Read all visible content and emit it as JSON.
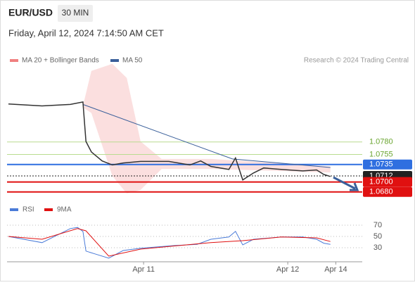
{
  "header": {
    "symbol": "EUR/USD",
    "interval": "30 MIN",
    "timestamp": "Friday, April 12, 2024 7:14:50 AM CET",
    "credit": "Research © 2024 Trading Central"
  },
  "chart_data": [
    {
      "type": "line",
      "x": [
        1.5,
        7.1,
        11.8,
        13.9,
        14.4,
        15.3,
        17.1,
        18.8,
        20.6,
        23.5,
        28.2,
        31.7,
        33.5,
        35.2,
        38.2,
        39.3,
        40.5,
        42.3,
        44.0,
        46.9,
        50.5,
        52.8,
        54.0,
        55.1
      ],
      "values": [
        1.0856,
        1.0852,
        1.0855,
        1.086,
        1.0781,
        1.076,
        1.0742,
        1.0734,
        1.0738,
        1.0741,
        1.0741,
        1.0734,
        1.0742,
        1.0731,
        1.0725,
        1.0748,
        1.0704,
        1.0718,
        1.0728,
        1.0725,
        1.0722,
        1.0724,
        1.0715,
        1.0711
      ],
      "color": "#333333",
      "series": [
        {
          "name": "MA 20 + Bollinger Bands",
          "color": "#f08080",
          "x": [
            13.9,
            15.3,
            18.8,
            21.2,
            23.5,
            27.0,
            35.2,
            55.1
          ],
          "upper": [
            1.0852,
            1.0922,
            1.0936,
            1.0908,
            1.0781,
            1.0746,
            1.0746,
            1.0731
          ],
          "lower": [
            1.0849,
            1.0838,
            1.0712,
            1.0677,
            1.0684,
            1.0726,
            1.0726,
            1.0719
          ]
        },
        {
          "name": "MA 50",
          "color": "#3a5f9a",
          "x": [
            13.9,
            38.8,
            55.1
          ],
          "values": [
            1.0855,
            1.0746,
            1.0729
          ]
        }
      ],
      "levels": [
        {
          "value": 1.078,
          "label": "1.0780",
          "color": "#6aa530"
        },
        {
          "value": 1.0755,
          "label": "1.0755",
          "color": "#6aa530"
        },
        {
          "value": 1.0735,
          "label": "1.0735",
          "color": "#2f6fe0"
        },
        {
          "value": 1.0712,
          "label": "1.0712",
          "color": "#222222"
        },
        {
          "value": 1.07,
          "label": "1.0700",
          "color": "#e01010"
        },
        {
          "value": 1.068,
          "label": "1.0680",
          "color": "#e01010"
        }
      ],
      "xlim": [
        1.5,
        60.4
      ],
      "ylim": [
        1.066,
        1.094
      ],
      "xticks": [
        {
          "value": 24,
          "label": "Apr 11"
        },
        {
          "value": 48,
          "label": "Apr 12"
        },
        {
          "value": 56,
          "label": "Apr 14"
        }
      ]
    },
    {
      "type": "line",
      "series": [
        {
          "name": "RSI",
          "color": "#4a7bd8",
          "x": [
            1.5,
            7.1,
            11.8,
            13.0,
            13.9,
            14.4,
            15.9,
            18.2,
            20.6,
            23.5,
            29.4,
            32.9,
            35.2,
            38.2,
            39.3,
            40.5,
            42.3,
            46.9,
            50.5,
            52.8,
            54.0,
            55.1
          ],
          "values": [
            50,
            39,
            64,
            66,
            59,
            24,
            19,
            11.5,
            25,
            29,
            34,
            36,
            45,
            49,
            59,
            35,
            45,
            49,
            49,
            45,
            38,
            36
          ]
        },
        {
          "name": "9MA",
          "color": "#e01010",
          "x": [
            1.5,
            7.1,
            13.0,
            14.4,
            18.2,
            23.5,
            35.2,
            40.5,
            46.9,
            52.8,
            55.1
          ],
          "values": [
            50,
            45,
            64,
            60,
            15,
            27.5,
            39,
            42.5,
            49,
            47.5,
            41
          ]
        }
      ],
      "xlim": [
        1.5,
        60.4
      ],
      "ylim": [
        7.5,
        80
      ],
      "yticks": [
        70,
        50,
        30
      ]
    }
  ]
}
